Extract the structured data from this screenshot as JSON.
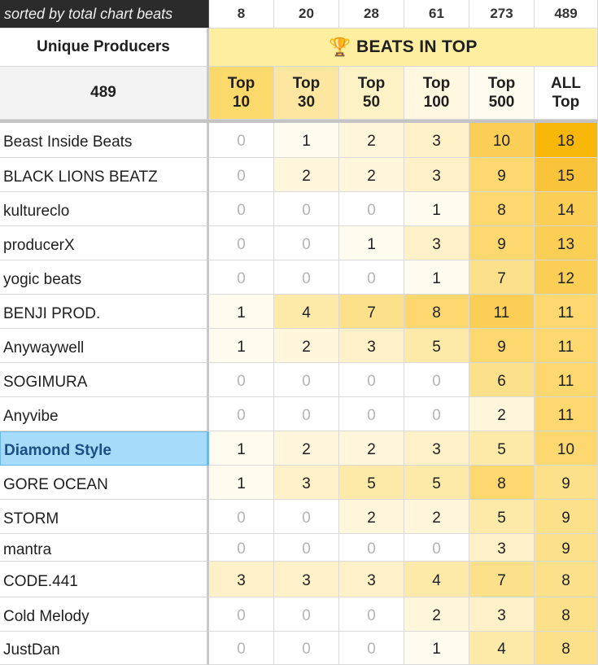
{
  "sheet": {
    "sort_note": "sorted by total chart beats",
    "unique_producers_label": "Unique Producers",
    "unique_producers_count": "489",
    "beats_header": {
      "icon": "trophy-icon",
      "label": "BEATS IN TOP"
    },
    "columns": [
      {
        "count": "8",
        "line1": "Top",
        "line2": "10"
      },
      {
        "count": "20",
        "line1": "Top",
        "line2": "30"
      },
      {
        "count": "28",
        "line1": "Top",
        "line2": "50"
      },
      {
        "count": "61",
        "line1": "Top",
        "line2": "100"
      },
      {
        "count": "273",
        "line1": "Top",
        "line2": "500"
      },
      {
        "count": "489",
        "line1": "ALL",
        "line2": "Top"
      }
    ],
    "highlighted_producer": "Diamond Style",
    "rows": [
      {
        "name": "Beast Inside Beats",
        "values": [
          0,
          1,
          2,
          3,
          10,
          18
        ]
      },
      {
        "name": "BLACK LIONS BEATZ",
        "values": [
          0,
          2,
          2,
          3,
          9,
          15
        ]
      },
      {
        "name": "kultureclo",
        "values": [
          0,
          0,
          0,
          1,
          8,
          14
        ]
      },
      {
        "name": "producerX",
        "values": [
          0,
          0,
          1,
          3,
          9,
          13
        ]
      },
      {
        "name": "yogic beats",
        "values": [
          0,
          0,
          0,
          1,
          7,
          12
        ]
      },
      {
        "name": "BENJI PROD.",
        "values": [
          1,
          4,
          7,
          8,
          11,
          11
        ]
      },
      {
        "name": "Anywaywell",
        "values": [
          1,
          2,
          3,
          5,
          9,
          11
        ]
      },
      {
        "name": "SOGIMURA",
        "values": [
          0,
          0,
          0,
          0,
          6,
          11
        ]
      },
      {
        "name": "Anyvibe",
        "values": [
          0,
          0,
          0,
          0,
          2,
          11
        ]
      },
      {
        "name": "Diamond Style",
        "values": [
          1,
          2,
          2,
          3,
          5,
          10
        ]
      },
      {
        "name": "GORE OCEAN",
        "values": [
          1,
          3,
          5,
          5,
          8,
          9
        ]
      },
      {
        "name": "STORM",
        "values": [
          0,
          0,
          2,
          2,
          5,
          9
        ]
      },
      {
        "name": "mantra",
        "values": [
          0,
          0,
          0,
          0,
          3,
          9
        ]
      },
      {
        "name": "CODE.441",
        "values": [
          3,
          3,
          3,
          4,
          7,
          8
        ]
      },
      {
        "name": "Cold Melody",
        "values": [
          0,
          0,
          0,
          2,
          3,
          8
        ]
      },
      {
        "name": "JustDan",
        "values": [
          0,
          0,
          0,
          1,
          4,
          8
        ]
      }
    ],
    "colors": {
      "zero": "#ffffff",
      "low": "#fffbee",
      "mid": "#fdeeb4",
      "high": "#fcd76a",
      "max": "#f8b80a",
      "highlight": "#a6dcfa"
    }
  }
}
